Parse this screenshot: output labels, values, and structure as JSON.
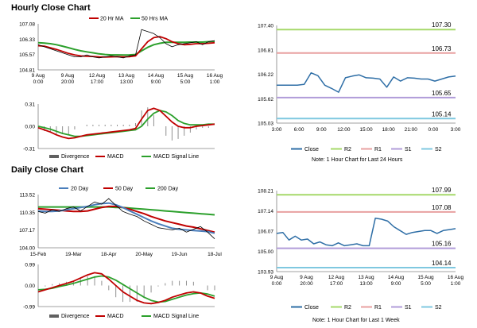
{
  "sections": {
    "hourly_title": "Hourly Close Chart",
    "daily_title": "Daily Close Chart"
  },
  "colors": {
    "ma_short": "#c00000",
    "ma_long": "#2ca02c",
    "ma_mid": "#4a7ebb",
    "close": "#2e6ea6",
    "r2": "#a6d96a",
    "r1": "#e8a0a0",
    "s1": "#b19cd9",
    "s2": "#7fc8e0",
    "macd": "#c00000",
    "signal": "#2ca02c"
  },
  "chart_data": [
    {
      "id": "hourly_price",
      "type": "line",
      "legend": [
        "20 Hr MA",
        "50 Hrs MA"
      ],
      "ylim": [
        104.81,
        107.08
      ],
      "y_ticks": [
        "107.08",
        "106.33",
        "105.57",
        "104.81"
      ],
      "x_ticks": [
        [
          "9 Aug",
          "0:00"
        ],
        [
          "9 Aug",
          "20:00"
        ],
        [
          "12 Aug",
          "17:00"
        ],
        [
          "13 Aug",
          "13:00"
        ],
        [
          "14 Aug",
          "9:00"
        ],
        [
          "15 Aug",
          "5:00"
        ],
        [
          "16 Aug",
          "1:00"
        ]
      ],
      "series": [
        {
          "name": "Close",
          "values": [
            106.05,
            105.95,
            105.85,
            105.75,
            105.65,
            105.55,
            105.45,
            105.45,
            105.55,
            105.45,
            105.4,
            105.45,
            105.5,
            105.45,
            105.4,
            105.5,
            105.55,
            106.8,
            106.7,
            106.6,
            106.4,
            106.1,
            105.95,
            106.05,
            106.1,
            106.15,
            106.2,
            106.05,
            106.2,
            106.25
          ]
        },
        {
          "name": "20 Hr MA",
          "values": [
            106.0,
            105.98,
            105.9,
            105.82,
            105.72,
            105.62,
            105.55,
            105.5,
            105.48,
            105.47,
            105.45,
            105.44,
            105.45,
            105.46,
            105.45,
            105.46,
            105.5,
            105.85,
            106.2,
            106.4,
            106.45,
            106.35,
            106.2,
            106.1,
            106.05,
            106.07,
            106.1,
            106.1,
            106.12,
            106.15
          ]
        },
        {
          "name": "50 Hrs MA",
          "values": [
            106.15,
            106.13,
            106.1,
            106.05,
            105.98,
            105.9,
            105.82,
            105.75,
            105.7,
            105.65,
            105.6,
            105.57,
            105.55,
            105.55,
            105.54,
            105.55,
            105.57,
            105.75,
            105.92,
            106.05,
            106.12,
            106.17,
            106.17,
            106.17,
            106.17,
            106.18,
            106.18,
            106.18,
            106.2,
            106.22
          ]
        }
      ]
    },
    {
      "id": "hourly_macd",
      "type": "line",
      "legend": [
        "Divergence",
        "MACD",
        "MACD Signal Line"
      ],
      "ylim": [
        -0.31,
        0.31
      ],
      "y_ticks": [
        "0.31",
        "0.00",
        "-0.31"
      ],
      "series": [
        {
          "name": "MACD",
          "values": [
            -0.02,
            -0.05,
            -0.08,
            -0.12,
            -0.15,
            -0.17,
            -0.16,
            -0.14,
            -0.12,
            -0.11,
            -0.1,
            -0.09,
            -0.08,
            -0.07,
            -0.06,
            -0.05,
            -0.03,
            0.1,
            0.22,
            0.25,
            0.22,
            0.14,
            0.06,
            0.0,
            -0.02,
            -0.02,
            0.0,
            0.01,
            0.02,
            0.03
          ]
        },
        {
          "name": "MACD Signal Line",
          "values": [
            0.0,
            -0.02,
            -0.04,
            -0.07,
            -0.1,
            -0.12,
            -0.14,
            -0.14,
            -0.13,
            -0.12,
            -0.11,
            -0.1,
            -0.09,
            -0.08,
            -0.07,
            -0.06,
            -0.05,
            0.0,
            0.1,
            0.18,
            0.22,
            0.2,
            0.15,
            0.08,
            0.04,
            0.02,
            0.02,
            0.02,
            0.03,
            0.03
          ]
        }
      ]
    },
    {
      "id": "hourly_pivot",
      "type": "line",
      "note": "Note: 1 Hour Chart for Last 24 Hours",
      "ylim": [
        105.03,
        107.4
      ],
      "y_ticks": [
        "107.40",
        "106.81",
        "106.22",
        "105.62",
        "105.03"
      ],
      "x_ticks": [
        "3:00",
        "6:00",
        "9:00",
        "12:00",
        "15:00",
        "18:00",
        "21:00",
        "0:00",
        "3:00"
      ],
      "levels": {
        "R2": 107.3,
        "R1": 106.73,
        "S1": 105.65,
        "S2": 105.14
      },
      "level_labels": {
        "R2": "107.30",
        "R1": "106.73",
        "S1": "105.65",
        "S2": "105.14"
      },
      "legend": [
        "Close",
        "R2",
        "R1",
        "S1",
        "S2"
      ],
      "series": [
        {
          "name": "Close",
          "values": [
            105.95,
            105.95,
            105.95,
            105.95,
            105.97,
            106.25,
            106.18,
            105.95,
            105.87,
            105.78,
            106.13,
            106.17,
            106.2,
            106.13,
            106.12,
            106.1,
            105.9,
            106.15,
            106.05,
            106.13,
            106.12,
            106.1,
            106.1,
            106.05,
            106.1,
            106.15,
            106.17
          ]
        }
      ]
    },
    {
      "id": "daily_price",
      "type": "line",
      "legend": [
        "20 Day",
        "50 Day",
        "200 Day"
      ],
      "ylim": [
        104.0,
        113.52
      ],
      "y_ticks": [
        "113.52",
        "110.35",
        "107.17",
        "104.00"
      ],
      "x_ticks": [
        "15-Feb",
        "19-Mar",
        "18-Apr",
        "20-May",
        "19-Jun",
        "18-Jul"
      ],
      "series": [
        {
          "name": "Close",
          "values": [
            110.5,
            110.2,
            110.8,
            110.5,
            111.0,
            111.3,
            110.6,
            111.4,
            112.2,
            111.8,
            112.8,
            111.6,
            110.5,
            110.0,
            109.6,
            108.8,
            108.2,
            107.6,
            107.4,
            107.2,
            107.5,
            106.8,
            107.3,
            107.8,
            106.8,
            105.6
          ]
        },
        {
          "name": "20 Day",
          "values": [
            110.6,
            110.5,
            110.5,
            110.6,
            110.8,
            111.0,
            111.2,
            111.4,
            111.7,
            111.9,
            112.0,
            111.7,
            111.2,
            110.6,
            110.0,
            109.4,
            108.8,
            108.3,
            107.9,
            107.5,
            107.3,
            107.2,
            107.1,
            107.0,
            106.9,
            106.6
          ]
        },
        {
          "name": "50 Day",
          "values": [
            111.0,
            110.9,
            110.8,
            110.7,
            110.6,
            110.5,
            110.5,
            110.6,
            110.9,
            111.2,
            111.4,
            111.4,
            111.2,
            110.9,
            110.5,
            110.1,
            109.6,
            109.2,
            108.8,
            108.5,
            108.2,
            107.9,
            107.7,
            107.4,
            107.1,
            106.8
          ]
        },
        {
          "name": "200 Day",
          "values": [
            111.3,
            111.3,
            111.3,
            111.3,
            111.3,
            111.3,
            111.3,
            111.3,
            111.3,
            111.3,
            111.3,
            111.2,
            111.2,
            111.1,
            111.0,
            110.9,
            110.8,
            110.7,
            110.6,
            110.5,
            110.4,
            110.3,
            110.2,
            110.1,
            110.0,
            109.9
          ]
        }
      ]
    },
    {
      "id": "daily_macd",
      "type": "line",
      "legend": [
        "Divergence",
        "MACD",
        "MACD Signal Line"
      ],
      "ylim": [
        -0.99,
        0.99
      ],
      "y_ticks": [
        "0.99",
        "0.00",
        "-0.99"
      ],
      "series": [
        {
          "name": "MACD",
          "values": [
            -0.3,
            -0.2,
            -0.1,
            0.0,
            0.1,
            0.2,
            0.35,
            0.5,
            0.6,
            0.55,
            0.3,
            0.0,
            -0.3,
            -0.5,
            -0.7,
            -0.82,
            -0.85,
            -0.8,
            -0.7,
            -0.55,
            -0.45,
            -0.35,
            -0.3,
            -0.35,
            -0.5,
            -0.6
          ]
        },
        {
          "name": "MACD Signal Line",
          "values": [
            -0.2,
            -0.18,
            -0.13,
            -0.05,
            0.02,
            0.1,
            0.2,
            0.3,
            0.4,
            0.45,
            0.4,
            0.25,
            0.05,
            -0.15,
            -0.35,
            -0.55,
            -0.7,
            -0.78,
            -0.75,
            -0.65,
            -0.55,
            -0.45,
            -0.38,
            -0.35,
            -0.4,
            -0.5
          ]
        }
      ]
    },
    {
      "id": "daily_pivot",
      "type": "line",
      "note": "Note: 1 Hour Chart for Last 1 Week",
      "ylim": [
        103.93,
        108.21
      ],
      "y_ticks": [
        "108.21",
        "107.14",
        "106.07",
        "105.00",
        "103.93"
      ],
      "x_ticks": [
        [
          "9 Aug",
          "0:00"
        ],
        [
          "9 Aug",
          "20:00"
        ],
        [
          "12 Aug",
          "17:00"
        ],
        [
          "13 Aug",
          "13:00"
        ],
        [
          "14 Aug",
          "9:00"
        ],
        [
          "15 Aug",
          "5:00"
        ],
        [
          "16 Aug",
          "1:00"
        ]
      ],
      "levels": {
        "R2": 107.99,
        "R1": 107.08,
        "S1": 105.16,
        "S2": 104.14
      },
      "level_labels": {
        "R2": "107.99",
        "R1": "107.08",
        "S1": "105.16",
        "S2": "104.14"
      },
      "legend": [
        "Close",
        "R2",
        "R1",
        "S1",
        "S2"
      ],
      "series": [
        {
          "name": "Close",
          "values": [
            105.95,
            106.0,
            105.6,
            105.8,
            105.6,
            105.65,
            105.4,
            105.5,
            105.35,
            105.3,
            105.45,
            105.3,
            105.35,
            105.4,
            105.3,
            105.3,
            106.75,
            106.7,
            106.6,
            106.3,
            106.1,
            105.9,
            106.0,
            106.05,
            106.1,
            106.1,
            105.95,
            106.1,
            106.15,
            106.2
          ]
        }
      ]
    }
  ]
}
